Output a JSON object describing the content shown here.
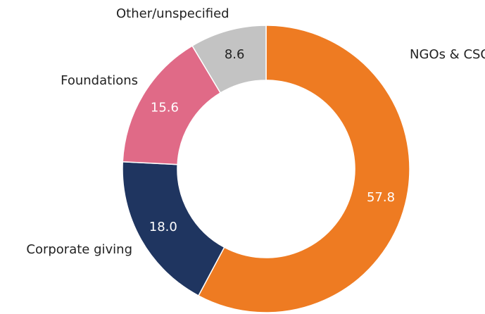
{
  "chart_data": {
    "type": "donut",
    "categories": [
      "NGOs & CSOs",
      "Corporate giving",
      "Foundations",
      "Other/unspecified"
    ],
    "values": [
      57.8,
      18.0,
      15.6,
      8.6
    ],
    "value_labels": [
      "57.8",
      "18.0",
      "15.6",
      "8.6"
    ],
    "colors": [
      "#ee7b22",
      "#1f3560",
      "#e06a87",
      "#c3c3c3"
    ]
  }
}
